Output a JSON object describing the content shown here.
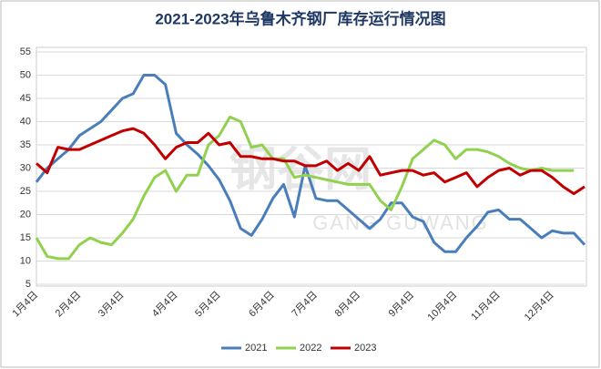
{
  "chart_data": {
    "type": "line",
    "title": "2021-2023年乌鲁木齐钢厂库存运行情况图",
    "watermark": {
      "name": "钢谷网",
      "sub": "GANG GUWANG"
    },
    "categories": [
      "1月4日",
      null,
      null,
      null,
      "2月4日",
      null,
      null,
      null,
      "3月4日",
      null,
      null,
      null,
      null,
      "4月4日",
      null,
      null,
      null,
      "5月4日",
      null,
      null,
      null,
      null,
      "6月4日",
      null,
      null,
      null,
      "7月4日",
      null,
      null,
      null,
      "8月4日",
      null,
      null,
      null,
      null,
      "9月4日",
      null,
      null,
      null,
      "10月4日",
      null,
      null,
      null,
      "11月4日",
      null,
      null,
      null,
      null,
      "12月4日",
      null,
      null,
      null
    ],
    "series": [
      {
        "name": "2021",
        "color": "#4a7ebb",
        "values": [
          27,
          30,
          32,
          34,
          37,
          38.5,
          40,
          42.5,
          45,
          46,
          50,
          50,
          48,
          37.5,
          35,
          33,
          30.5,
          27.5,
          23,
          17,
          15.5,
          19,
          23.5,
          26.5,
          19.5,
          30.5,
          23.5,
          23,
          23,
          21,
          19,
          17,
          19,
          22.5,
          22.5,
          19.5,
          18.5,
          14,
          12,
          12,
          15,
          17.5,
          20.5,
          21,
          19,
          19,
          17,
          15,
          16.5,
          16,
          16,
          13.5
        ]
      },
      {
        "name": "2022",
        "color": "#92d050",
        "values": [
          15,
          11,
          10.5,
          10.5,
          13.5,
          15,
          14,
          13.5,
          16,
          19,
          24,
          28,
          29.5,
          25,
          28.5,
          28.5,
          35,
          37,
          41,
          40,
          34.5,
          35,
          32,
          32,
          28,
          28.5,
          28,
          27.5,
          27,
          26.5,
          26.5,
          26.5,
          23,
          21,
          26,
          32,
          34,
          36,
          35,
          32,
          34,
          34,
          33.5,
          32.5,
          31,
          30,
          29.5,
          30,
          29.5,
          29.5,
          29.5,
          null
        ]
      },
      {
        "name": "2023",
        "color": "#c00000",
        "values": [
          31,
          29,
          34.5,
          34,
          34,
          35,
          36,
          37,
          38,
          38.5,
          37.5,
          35,
          32,
          34.5,
          35.5,
          35.5,
          37.5,
          35,
          35.5,
          32.5,
          32.5,
          32,
          32,
          31.5,
          31.5,
          30.5,
          30.5,
          31.5,
          29.5,
          31,
          29.5,
          32.5,
          28.5,
          29,
          29.5,
          29.5,
          28.5,
          29,
          27,
          28,
          29,
          26,
          28,
          29.5,
          30,
          28.5,
          29.5,
          29.5,
          28,
          26,
          24.5,
          26
        ]
      }
    ],
    "ylim": [
      5,
      55
    ],
    "yticks": [
      5,
      10,
      15,
      20,
      25,
      30,
      35,
      40,
      45,
      50,
      55
    ],
    "grid": true,
    "legend": "bottom"
  }
}
